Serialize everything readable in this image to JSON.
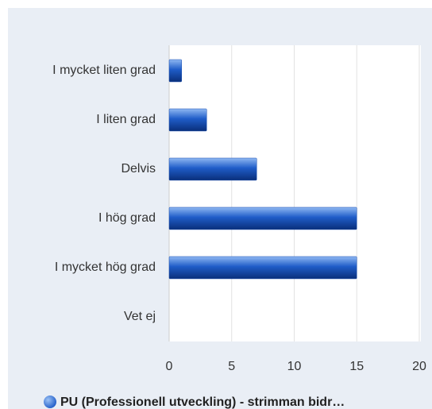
{
  "chart_data": {
    "type": "bar",
    "orientation": "horizontal",
    "categories": [
      "I mycket liten grad",
      "I liten grad",
      "Delvis",
      "I hög grad",
      "I mycket hög grad",
      "Vet ej"
    ],
    "series": [
      {
        "name": "PU (Professionell utveckling) - strimman bidr…",
        "color": "#1f5cc8",
        "values": [
          1,
          3,
          7,
          15,
          15,
          0
        ]
      }
    ],
    "xlim": [
      0,
      20
    ],
    "xticks": [
      0,
      5,
      10,
      15,
      20
    ],
    "grid": true,
    "legend": "bottom"
  }
}
